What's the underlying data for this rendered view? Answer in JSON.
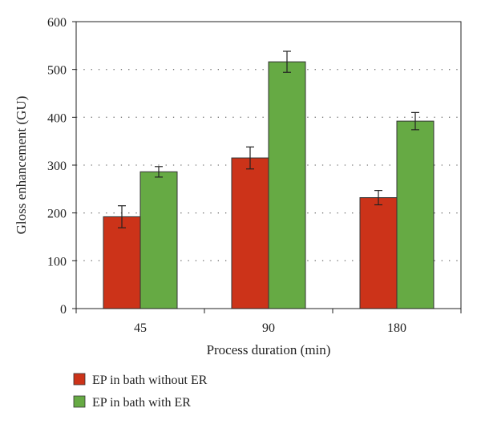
{
  "chart_data": {
    "type": "bar",
    "title": "",
    "xlabel": "Process duration (min)",
    "ylabel": "Gloss enhancement (GU)",
    "ylim": [
      0,
      600
    ],
    "yticks": [
      0,
      100,
      200,
      300,
      400,
      500,
      600
    ],
    "categories": [
      "45",
      "90",
      "180"
    ],
    "grid": "horizontal-dotted",
    "legend_position": "bottom-left",
    "series": [
      {
        "name": "EP in bath without ER",
        "color": "#cc3319",
        "values": [
          192,
          315,
          232
        ],
        "errors": [
          23,
          23,
          15
        ]
      },
      {
        "name": "EP in bath with ER",
        "color": "#66aa44",
        "values": [
          286,
          516,
          392
        ],
        "errors": [
          11,
          22,
          18
        ]
      }
    ]
  }
}
